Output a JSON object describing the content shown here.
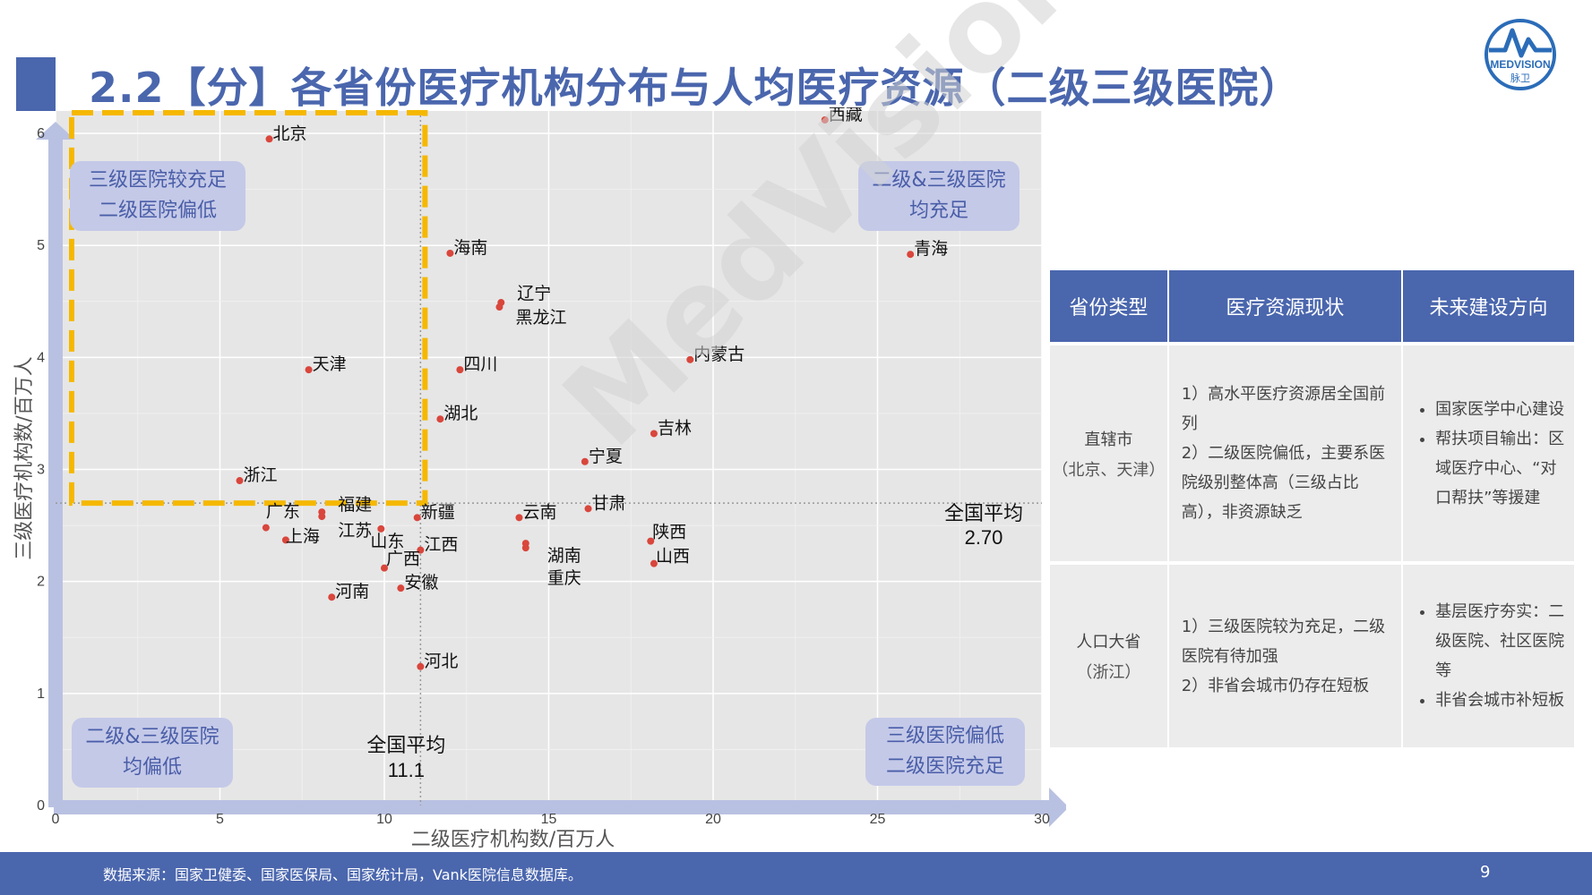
{
  "title": "2.2【分】各省份医疗机构分布与人均医疗资源（二级三级医院）",
  "logo": {
    "text": "MEDVISION",
    "subtext": "脉卫"
  },
  "watermark": "MedVision",
  "colors": {
    "accent": "#4a66ad",
    "point": "#d9463c",
    "dashed": "#f5b800",
    "panel": "#e6e6e6"
  },
  "chart_data": {
    "type": "scatter",
    "xlabel": "二级医疗机构数/百万人",
    "ylabel": "三级医疗机构数/百万人",
    "xlim": [
      0,
      30
    ],
    "ylim": [
      0,
      6.2
    ],
    "xticks": [
      0,
      5,
      10,
      15,
      20,
      25,
      30
    ],
    "yticks": [
      0,
      1,
      2,
      3,
      4,
      5,
      6
    ],
    "grid": true,
    "avg_x": {
      "value": 11.1,
      "label": "全国平均",
      "text": "11.1"
    },
    "avg_y": {
      "value": 2.7,
      "label": "全国平均",
      "text": "2.70"
    },
    "points": [
      {
        "name": "西藏",
        "x": 23.4,
        "y": 6.12
      },
      {
        "name": "北京",
        "x": 6.5,
        "y": 5.95
      },
      {
        "name": "青海",
        "x": 26.0,
        "y": 4.92
      },
      {
        "name": "海南",
        "x": 12.0,
        "y": 4.93
      },
      {
        "name": "辽宁",
        "x": 13.55,
        "y": 4.49
      },
      {
        "name": "黑龙江",
        "x": 13.5,
        "y": 4.45
      },
      {
        "name": "内蒙古",
        "x": 19.3,
        "y": 3.98
      },
      {
        "name": "天津",
        "x": 7.7,
        "y": 3.89
      },
      {
        "name": "四川",
        "x": 12.3,
        "y": 3.89
      },
      {
        "name": "湖北",
        "x": 11.7,
        "y": 3.45
      },
      {
        "name": "吉林",
        "x": 18.2,
        "y": 3.32
      },
      {
        "name": "宁夏",
        "x": 16.1,
        "y": 3.07
      },
      {
        "name": "浙江",
        "x": 5.6,
        "y": 2.9
      },
      {
        "name": "甘肃",
        "x": 16.2,
        "y": 2.65
      },
      {
        "name": "福建",
        "x": 8.1,
        "y": 2.62
      },
      {
        "name": "江苏",
        "x": 8.1,
        "y": 2.58
      },
      {
        "name": "新疆",
        "x": 11.0,
        "y": 2.57
      },
      {
        "name": "云南",
        "x": 14.1,
        "y": 2.57
      },
      {
        "name": "广东",
        "x": 6.4,
        "y": 2.48
      },
      {
        "name": "山东",
        "x": 9.9,
        "y": 2.47
      },
      {
        "name": "上海",
        "x": 7.0,
        "y": 2.37
      },
      {
        "name": "陕西",
        "x": 18.1,
        "y": 2.36
      },
      {
        "name": "湖南",
        "x": 14.3,
        "y": 2.34
      },
      {
        "name": "重庆",
        "x": 14.3,
        "y": 2.3
      },
      {
        "name": "江西",
        "x": 11.1,
        "y": 2.28
      },
      {
        "name": "山西",
        "x": 18.2,
        "y": 2.16
      },
      {
        "name": "广西",
        "x": 10.0,
        "y": 2.12
      },
      {
        "name": "安徽",
        "x": 10.5,
        "y": 1.94
      },
      {
        "name": "河南",
        "x": 8.4,
        "y": 1.86
      },
      {
        "name": "河北",
        "x": 11.1,
        "y": 1.24
      }
    ]
  },
  "quadrants": {
    "top_left": {
      "line1": "三级医院较充足",
      "line2": "二级医院偏低"
    },
    "top_right": {
      "line1": "二级&三级医院",
      "line2": "均充足"
    },
    "bottom_left": {
      "line1": "二级&三级医院",
      "line2": "均偏低"
    },
    "bottom_right": {
      "line1": "三级医院偏低",
      "line2": "二级医院充足"
    }
  },
  "table": {
    "headers": [
      "省份类型",
      "医疗资源现状",
      "未来建设方向"
    ],
    "rows": [
      {
        "type": "直辖市",
        "type_sub": "（北京、天津）",
        "status": [
          "1）高水平医疗资源居全国前列",
          "2）二级医院偏低，主要系医院级别整体高（三级占比高），非资源缺乏"
        ],
        "direction": [
          "国家医学中心建设",
          "帮扶项目输出：区域医疗中心、“对口帮扶”等援建"
        ]
      },
      {
        "type": "人口大省",
        "type_sub": "（浙江）",
        "status": [
          "1）三级医院较为充足，二级医院有待加强",
          "2）非省会城市仍存在短板"
        ],
        "direction": [
          "基层医疗夯实：二级医院、社区医院等",
          "非省会城市补短板"
        ]
      }
    ]
  },
  "footer": {
    "source": "数据来源：国家卫健委、国家医保局、国家统计局，Vank医院信息数据库。",
    "page": "9"
  }
}
